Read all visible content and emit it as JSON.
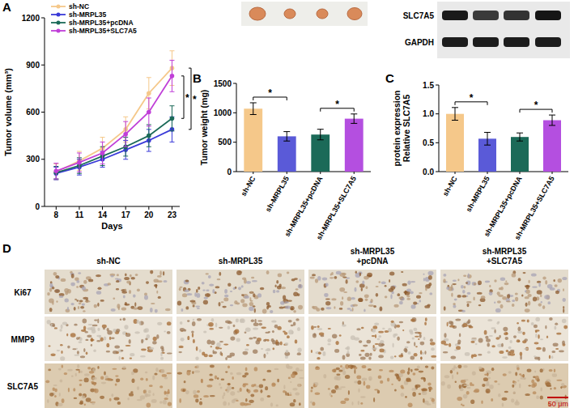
{
  "chart_data": [
    {
      "type": "line",
      "xlabel": "Days",
      "ylabel": "Tumor volume (mm³)",
      "x": [
        8,
        11,
        14,
        17,
        20,
        23
      ],
      "xlim": [
        6.5,
        24
      ],
      "xticks": [
        8,
        11,
        14,
        17,
        20,
        23
      ],
      "ylim": [
        0,
        1200
      ],
      "yticks": [
        0,
        300,
        600,
        900,
        1200
      ],
      "legend": "top-left",
      "marker": "circle",
      "series": [
        {
          "name": "sh-NC",
          "color": "#f5c88a",
          "values": [
            220,
            290,
            370,
            490,
            720,
            880
          ],
          "errors": [
            50,
            60,
            70,
            80,
            100,
            110
          ]
        },
        {
          "name": "sh-MRPL35",
          "color": "#3a3ad8",
          "values": [
            210,
            250,
            300,
            360,
            420,
            490
          ],
          "errors": [
            40,
            50,
            50,
            60,
            70,
            80
          ]
        },
        {
          "name": "sh-MRPL35+pcDNA",
          "color": "#1b6a58",
          "values": [
            215,
            260,
            320,
            380,
            450,
            560
          ],
          "errors": [
            40,
            50,
            60,
            60,
            70,
            80
          ]
        },
        {
          "name": "sh-MRPL35+SLC7A5",
          "color": "#c03fd8",
          "values": [
            225,
            280,
            340,
            460,
            600,
            830
          ],
          "errors": [
            50,
            60,
            70,
            80,
            90,
            100
          ]
        }
      ],
      "annotations": [
        {
          "text": "*",
          "pair": [
            "sh-NC",
            "sh-MRPL35"
          ]
        },
        {
          "text": "*",
          "pair": [
            "sh-MRPL35+pcDNA",
            "sh-MRPL35+SLC7A5"
          ]
        }
      ]
    },
    {
      "type": "bar",
      "ylabel": "Tumor weight (mg)",
      "categories": [
        "sh-NC",
        "sh-MRPL35",
        "sh-MRPL35+pcDNA",
        "sh-MRPL35+SLC7A5"
      ],
      "values": [
        1070,
        600,
        630,
        900
      ],
      "errors": [
        100,
        80,
        90,
        80
      ],
      "colors": [
        "#f5c88a",
        "#5a5ad8",
        "#1b6a58",
        "#b44fe0"
      ],
      "ylim": [
        0,
        1500
      ],
      "yticks": [
        0,
        500,
        1000,
        1500
      ],
      "annotations": [
        {
          "text": "*",
          "pair": [
            "sh-NC",
            "sh-MRPL35"
          ]
        },
        {
          "text": "*",
          "pair": [
            "sh-MRPL35+pcDNA",
            "sh-MRPL35+SLC7A5"
          ]
        }
      ]
    },
    {
      "type": "bar",
      "ylabel": [
        "Relative SLC7A5",
        "protein expression"
      ],
      "categories": [
        "sh-NC",
        "sh-MRPL35",
        "sh-MRPL35+pcDNA",
        "sh-MRPL35+SLC7A5"
      ],
      "values": [
        1.0,
        0.57,
        0.6,
        0.89
      ],
      "errors": [
        0.11,
        0.11,
        0.07,
        0.09
      ],
      "colors": [
        "#f5c88a",
        "#5a5ad8",
        "#1b6a58",
        "#b44fe0"
      ],
      "ylim": [
        0,
        1.5
      ],
      "yticks": [
        {
          "value": 0,
          "label": "0.0"
        },
        {
          "value": 0.5,
          "label": "0.5"
        },
        {
          "value": 1,
          "label": "1.0"
        },
        {
          "value": 1.5,
          "label": "1.5"
        }
      ],
      "annotations": [
        {
          "text": "*",
          "pair": [
            "sh-NC",
            "sh-MRPL35"
          ]
        },
        {
          "text": "*",
          "pair": [
            "sh-MRPL35+pcDNA",
            "sh-MRPL35+SLC7A5"
          ]
        }
      ]
    }
  ],
  "figure": {
    "panel_labels": [
      "A",
      "B",
      "C",
      "D"
    ],
    "blot_labels": [
      "SLC7A5",
      "GAPDH"
    ],
    "ihc": {
      "columns": [
        [
          "sh-NC"
        ],
        [
          "sh-MRPL35"
        ],
        [
          "sh-MRPL35",
          "+pcDNA"
        ],
        [
          "sh-MRPL35",
          "+SLC7A5"
        ]
      ],
      "rows": [
        "Ki67",
        "MMP9",
        "SLC7A5"
      ],
      "scale_bar": "50 μm"
    }
  }
}
